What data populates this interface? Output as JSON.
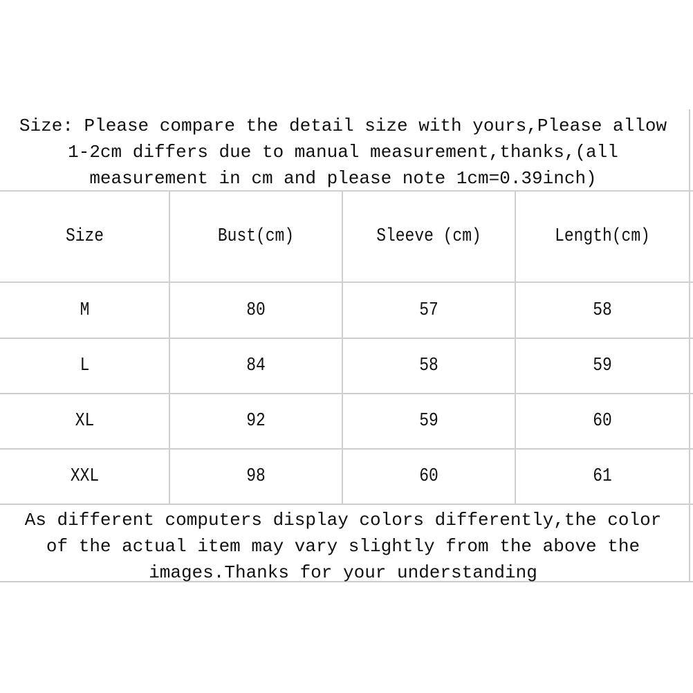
{
  "top_note": "Size: Please compare the detail size with yours,Please allow\n1-2cm differs due to manual measurement,thanks,(all\nmeasurement in cm and please note 1cm=0.39inch)",
  "table": {
    "headers": [
      "Size",
      "Bust(cm)",
      "Sleeve (cm)",
      "Length(cm)"
    ],
    "rows": [
      [
        "M",
        "80",
        "57",
        "58"
      ],
      [
        "L",
        "84",
        "58",
        "59"
      ],
      [
        "XL",
        "92",
        "59",
        "60"
      ],
      [
        "XXL",
        "98",
        "60",
        "61"
      ]
    ]
  },
  "bottom_note": "As different computers display colors differently,the color\nof the actual item may vary slightly from the above the\nimages.Thanks for your understanding"
}
